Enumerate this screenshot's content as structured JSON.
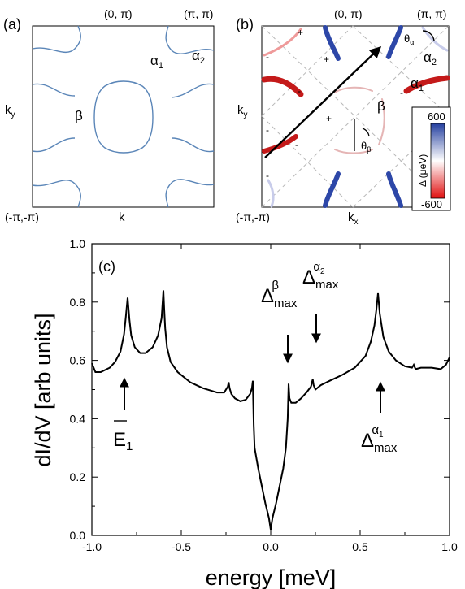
{
  "panel_a": {
    "label": "(a)",
    "corner_top_center": "(0, π)",
    "corner_top_right": "(π, π)",
    "corner_bottom_left": "(-π,-π)",
    "axis_y": "k",
    "axis_y_sub": "y",
    "axis_x": "k",
    "pocket_alpha1": "α",
    "pocket_alpha1_sub": "1",
    "pocket_alpha2": "α",
    "pocket_alpha2_sub": "2",
    "pocket_beta": "β",
    "line_color": "#5b86b8"
  },
  "panel_b": {
    "label": "(b)",
    "corner_top_center": "(0, π)",
    "corner_top_right": "(π, π)",
    "corner_bottom_left": "(-π,-π)",
    "axis_y": "k",
    "axis_y_sub": "y",
    "axis_x": "k",
    "axis_x_sub": "x",
    "pocket_alpha1": "α",
    "pocket_alpha1_sub": "1",
    "pocket_alpha2": "α",
    "pocket_alpha2_sub": "2",
    "pocket_beta": "β",
    "theta_alpha": "θ",
    "theta_alpha_sub": "α",
    "theta_beta": "θ",
    "theta_beta_sub": "β",
    "signs": [
      "+",
      "-",
      "+",
      "-",
      "-",
      "+",
      "-",
      "-",
      "-"
    ],
    "colorbar": {
      "max_label": "600",
      "min_label": "-600",
      "title": "Δ (μeV)",
      "max_color": "#2540a0",
      "mid_color": "#ffffff",
      "min_color": "#e01010"
    }
  },
  "panel_c": {
    "label": "(c)",
    "ylabel": "dI/dV  [arb units]",
    "xlabel": "energy [meV]",
    "annotations": {
      "e1_main": "E",
      "e1_sub": "1",
      "beta_main": "Δ",
      "beta_sub": "max",
      "beta_sup": "β",
      "alpha2_main": "Δ",
      "alpha2_sub": "max",
      "alpha2_sup": "α",
      "alpha2_sup_sub": "2",
      "alpha1_main": "Δ",
      "alpha1_sub": "max",
      "alpha1_sup": "α",
      "alpha1_sup_sub": "1"
    }
  },
  "chart_data": {
    "type": "line",
    "xlabel": "energy [meV]",
    "ylabel": "dI/dV  [arb units]",
    "xlim": [
      -1.0,
      1.0
    ],
    "ylim": [
      0.0,
      1.0
    ],
    "xticks": [
      "-1.0",
      "-0.5",
      "0.0",
      "0.5",
      "1.0"
    ],
    "yticks": [
      "0.0",
      "0.2",
      "0.4",
      "0.6",
      "0.8",
      "1.0"
    ],
    "grid": false,
    "series": [
      {
        "color": "#000000",
        "x": [
          -1.0,
          -0.98,
          -0.95,
          -0.9,
          -0.87,
          -0.84,
          -0.82,
          -0.81,
          -0.8,
          -0.79,
          -0.78,
          -0.76,
          -0.73,
          -0.7,
          -0.66,
          -0.63,
          -0.61,
          -0.6,
          -0.595,
          -0.59,
          -0.58,
          -0.56,
          -0.52,
          -0.45,
          -0.38,
          -0.3,
          -0.26,
          -0.24,
          -0.235,
          -0.23,
          -0.22,
          -0.2,
          -0.17,
          -0.14,
          -0.115,
          -0.105,
          -0.1,
          -0.095,
          -0.09,
          -0.07,
          -0.05,
          -0.03,
          -0.01,
          0.0,
          0.01,
          0.03,
          0.05,
          0.07,
          0.085,
          0.095,
          0.1,
          0.105,
          0.115,
          0.14,
          0.17,
          0.2,
          0.225,
          0.235,
          0.24,
          0.25,
          0.28,
          0.33,
          0.4,
          0.47,
          0.53,
          0.56,
          0.58,
          0.59,
          0.6,
          0.61,
          0.63,
          0.66,
          0.7,
          0.75,
          0.79,
          0.8,
          0.81,
          0.84,
          0.9,
          0.95,
          0.98,
          1.0
        ],
        "y": [
          0.59,
          0.56,
          0.56,
          0.575,
          0.595,
          0.63,
          0.69,
          0.75,
          0.815,
          0.74,
          0.685,
          0.645,
          0.625,
          0.625,
          0.645,
          0.685,
          0.745,
          0.84,
          0.77,
          0.71,
          0.645,
          0.595,
          0.56,
          0.525,
          0.505,
          0.49,
          0.49,
          0.51,
          0.525,
          0.505,
          0.485,
          0.47,
          0.46,
          0.465,
          0.485,
          0.505,
          0.53,
          0.38,
          0.3,
          0.23,
          0.17,
          0.11,
          0.06,
          0.02,
          0.06,
          0.11,
          0.17,
          0.23,
          0.3,
          0.4,
          0.52,
          0.47,
          0.455,
          0.455,
          0.47,
          0.49,
          0.51,
          0.535,
          0.515,
          0.5,
          0.515,
          0.53,
          0.55,
          0.575,
          0.615,
          0.665,
          0.72,
          0.77,
          0.83,
          0.76,
          0.68,
          0.63,
          0.6,
          0.58,
          0.575,
          0.585,
          0.57,
          0.575,
          0.575,
          0.57,
          0.585,
          0.61
        ]
      }
    ]
  }
}
